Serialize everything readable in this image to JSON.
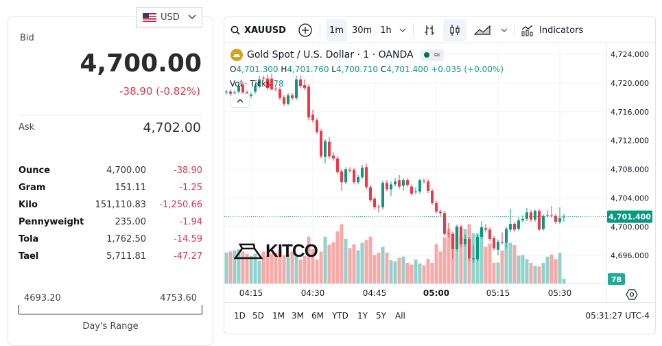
{
  "currency": {
    "label": "USD",
    "flag": "us-flag-icon"
  },
  "quote": {
    "bid_label": "Bid",
    "bid": "4,700.00",
    "change": "-38.90 (-0.82%)",
    "ask_label": "Ask",
    "ask": "4,702.00"
  },
  "units": [
    {
      "name": "Ounce",
      "value": "4,700.00",
      "change": "-38.90"
    },
    {
      "name": "Gram",
      "value": "151.11",
      "change": "-1.25"
    },
    {
      "name": "Kilo",
      "value": "151,110.83",
      "change": "-1,250.66"
    },
    {
      "name": "Pennyweight",
      "value": "235.00",
      "change": "-1.94"
    },
    {
      "name": "Tola",
      "value": "1,762.50",
      "change": "-14.59"
    },
    {
      "name": "Tael",
      "value": "5,711.81",
      "change": "-47.27"
    }
  ],
  "days_range": {
    "low": "4693.20",
    "high": "4753.60",
    "label": "Day's Range"
  },
  "toolbar": {
    "symbol": "XAUUSD",
    "intervals": [
      "1m",
      "30m",
      "1h"
    ],
    "selected_interval": "1m",
    "indicators": "Indicators"
  },
  "legend": {
    "title": "Gold Spot / U.S. Dollar · 1 · OANDA",
    "o": "4,701.300",
    "h": "4,701.760",
    "l": "4,700.710",
    "c": "4,701.400",
    "change": "+0.035 (+0.00%)",
    "vol_label": "Vol · Ticks",
    "vol_value": "78"
  },
  "watermark": "KITCO",
  "ranges": [
    "1D",
    "5D",
    "1M",
    "3M",
    "6M",
    "YTD",
    "1Y",
    "5Y",
    "All"
  ],
  "clock": "05:31:27 UTC-4",
  "colors": {
    "up": "#089981",
    "down": "#f23645",
    "vol_up": "#92d2cc",
    "vol_down": "#f7a9a7",
    "accent": "#e2334b"
  },
  "chart_data": {
    "type": "candlestick",
    "interval": "1m",
    "x_start": "04:09",
    "x_end": "05:31",
    "x_ticks": [
      "04:15",
      "04:30",
      "04:45",
      "05:00",
      "05:15",
      "05:30"
    ],
    "y_ticks": [
      "4,724.000",
      "4,720.000",
      "4,716.000",
      "4,712.000",
      "4,708.000",
      "4,704.000",
      "4,700.000",
      "4,696.000"
    ],
    "ylim": [
      4693.8,
      4725.2
    ],
    "last_price": "4,701.400",
    "last_volume": "78",
    "ohlc": [
      [
        4718.7,
        4719.0,
        4718.4,
        4718.8
      ],
      [
        4718.8,
        4719.1,
        4718.2,
        4718.5
      ],
      [
        4718.6,
        4719.0,
        4718.3,
        4718.7
      ],
      [
        4718.8,
        4720.1,
        4718.5,
        4719.6
      ],
      [
        4719.8,
        4720.2,
        4718.4,
        4718.7
      ],
      [
        4718.7,
        4719.0,
        4718.2,
        4718.4
      ],
      [
        4718.2,
        4718.7,
        4717.9,
        4718.4
      ],
      [
        4718.8,
        4719.9,
        4718.5,
        4719.6
      ],
      [
        4719.6,
        4721.0,
        4719.3,
        4720.5
      ],
      [
        4720.7,
        4721.0,
        4720.3,
        4720.6
      ],
      [
        4720.6,
        4721.2,
        4719.0,
        4719.3
      ],
      [
        4720.6,
        4721.3,
        4719.0,
        4719.1
      ],
      [
        4719.2,
        4719.5,
        4718.8,
        4719.1
      ],
      [
        4719.1,
        4719.4,
        4717.6,
        4717.9
      ],
      [
        4718.0,
        4718.3,
        4716.8,
        4717.1
      ],
      [
        4717.1,
        4718.6,
        4716.9,
        4718.3
      ],
      [
        4718.3,
        4718.6,
        4717.6,
        4717.9
      ],
      [
        4717.9,
        4721.0,
        4717.6,
        4720.5
      ],
      [
        4720.5,
        4721.0,
        4719.3,
        4719.6
      ],
      [
        4719.7,
        4720.5,
        4719.0,
        4719.3
      ],
      [
        4719.5,
        4719.8,
        4714.8,
        4715.2
      ],
      [
        4715.6,
        4716.3,
        4714.5,
        4714.8
      ],
      [
        4714.8,
        4715.1,
        4712.9,
        4713.2
      ],
      [
        4713.3,
        4713.6,
        4709.5,
        4709.8
      ],
      [
        4709.7,
        4712.2,
        4708.8,
        4711.9
      ],
      [
        4711.8,
        4712.5,
        4709.5,
        4709.8
      ],
      [
        4709.9,
        4710.4,
        4709.2,
        4709.5
      ],
      [
        4709.5,
        4709.8,
        4707.3,
        4707.6
      ],
      [
        4707.7,
        4708.0,
        4705.0,
        4706.2
      ],
      [
        4706.2,
        4708.3,
        4705.9,
        4708.0
      ],
      [
        4707.9,
        4708.3,
        4707.5,
        4707.8
      ],
      [
        4707.9,
        4708.2,
        4705.9,
        4706.2
      ],
      [
        4706.2,
        4707.2,
        4705.9,
        4706.9
      ],
      [
        4706.9,
        4708.6,
        4706.6,
        4708.2
      ],
      [
        4708.3,
        4708.8,
        4705.2,
        4705.5
      ],
      [
        4705.5,
        4705.8,
        4703.4,
        4703.7
      ],
      [
        4703.9,
        4704.1,
        4702.4,
        4702.7
      ],
      [
        4702.8,
        4703.1,
        4702.0,
        4702.7
      ],
      [
        4702.7,
        4706.4,
        4702.4,
        4706.1
      ],
      [
        4706.1,
        4706.5,
        4704.9,
        4705.2
      ],
      [
        4705.2,
        4706.3,
        4704.3,
        4705.9
      ],
      [
        4705.9,
        4706.8,
        4705.6,
        4706.3
      ],
      [
        4706.5,
        4707.2,
        4705.3,
        4705.6
      ],
      [
        4705.7,
        4706.8,
        4705.0,
        4706.5
      ],
      [
        4706.5,
        4706.8,
        4705.5,
        4705.8
      ],
      [
        4705.6,
        4705.9,
        4704.3,
        4704.6
      ],
      [
        4704.8,
        4705.5,
        4704.5,
        4704.9
      ],
      [
        4704.9,
        4706.7,
        4704.6,
        4706.5
      ],
      [
        4706.4,
        4706.7,
        4706.0,
        4706.3
      ],
      [
        4706.3,
        4706.6,
        4704.7,
        4705.0
      ],
      [
        4705.0,
        4705.3,
        4703.0,
        4703.3
      ],
      [
        4703.3,
        4703.6,
        4701.8,
        4702.1
      ],
      [
        4702.1,
        4702.4,
        4701.5,
        4701.9
      ],
      [
        4701.9,
        4702.2,
        4698.7,
        4699.0
      ],
      [
        4699.1,
        4700.5,
        4698.5,
        4699.0
      ],
      [
        4699.0,
        4699.3,
        4695.5,
        4696.9
      ],
      [
        4696.9,
        4700.3,
        4696.6,
        4700.0
      ],
      [
        4700.0,
        4700.3,
        4697.1,
        4697.6
      ],
      [
        4697.6,
        4698.9,
        4697.3,
        4698.3
      ],
      [
        4698.3,
        4698.6,
        4695.2,
        4695.6
      ],
      [
        4695.5,
        4697.4,
        4695.0,
        4695.6
      ],
      [
        4695.5,
        4698.9,
        4695.2,
        4698.6
      ],
      [
        4698.6,
        4700.8,
        4698.3,
        4699.9
      ],
      [
        4699.8,
        4700.4,
        4699.2,
        4699.6
      ],
      [
        4699.6,
        4699.9,
        4698.0,
        4698.3
      ],
      [
        4698.4,
        4698.7,
        4696.7,
        4697.0
      ],
      [
        4696.8,
        4698.2,
        4696.0,
        4697.9
      ],
      [
        4697.9,
        4699.2,
        4697.5,
        4697.8
      ],
      [
        4697.8,
        4700.0,
        4697.0,
        4699.7
      ],
      [
        4699.6,
        4702.5,
        4699.3,
        4700.4
      ],
      [
        4700.4,
        4700.7,
        4699.3,
        4699.6
      ],
      [
        4699.7,
        4701.3,
        4699.4,
        4700.9
      ],
      [
        4700.9,
        4701.6,
        4700.6,
        4701.1
      ],
      [
        4701.1,
        4702.6,
        4700.8,
        4702.0
      ],
      [
        4702.0,
        4702.3,
        4700.7,
        4701.0
      ],
      [
        4701.0,
        4702.4,
        4700.7,
        4702.2
      ],
      [
        4702.2,
        4702.5,
        4699.4,
        4699.6
      ],
      [
        4699.7,
        4701.7,
        4699.4,
        4701.5
      ],
      [
        4701.5,
        4702.3,
        4701.3,
        4701.6
      ],
      [
        4701.6,
        4702.9,
        4701.2,
        4701.5
      ],
      [
        4701.5,
        4701.8,
        4700.4,
        4700.7
      ],
      [
        4700.7,
        4702.7,
        4700.4,
        4701.2
      ],
      [
        4701.3,
        4701.76,
        4700.71,
        4701.4
      ]
    ],
    "volume": [
      500,
      518,
      537,
      555,
      518,
      481,
      444,
      481,
      370,
      518,
      444,
      481,
      500,
      537,
      463,
      474,
      518,
      463,
      389,
      444,
      759,
      555,
      389,
      518,
      759,
      629,
      666,
      844,
      962,
      722,
      574,
      636,
      537,
      659,
      703,
      759,
      463,
      500,
      592,
      500,
      377,
      359,
      414,
      437,
      333,
      307,
      389,
      326,
      296,
      400,
      333,
      636,
      518,
      747,
      888,
      814,
      925,
      740,
      881,
      962,
      814,
      814,
      918,
      592,
      648,
      333,
      340,
      537,
      666,
      659,
      622,
      451,
      463,
      396,
      333,
      289,
      274,
      333,
      437,
      470,
      396,
      496,
      78
    ]
  }
}
